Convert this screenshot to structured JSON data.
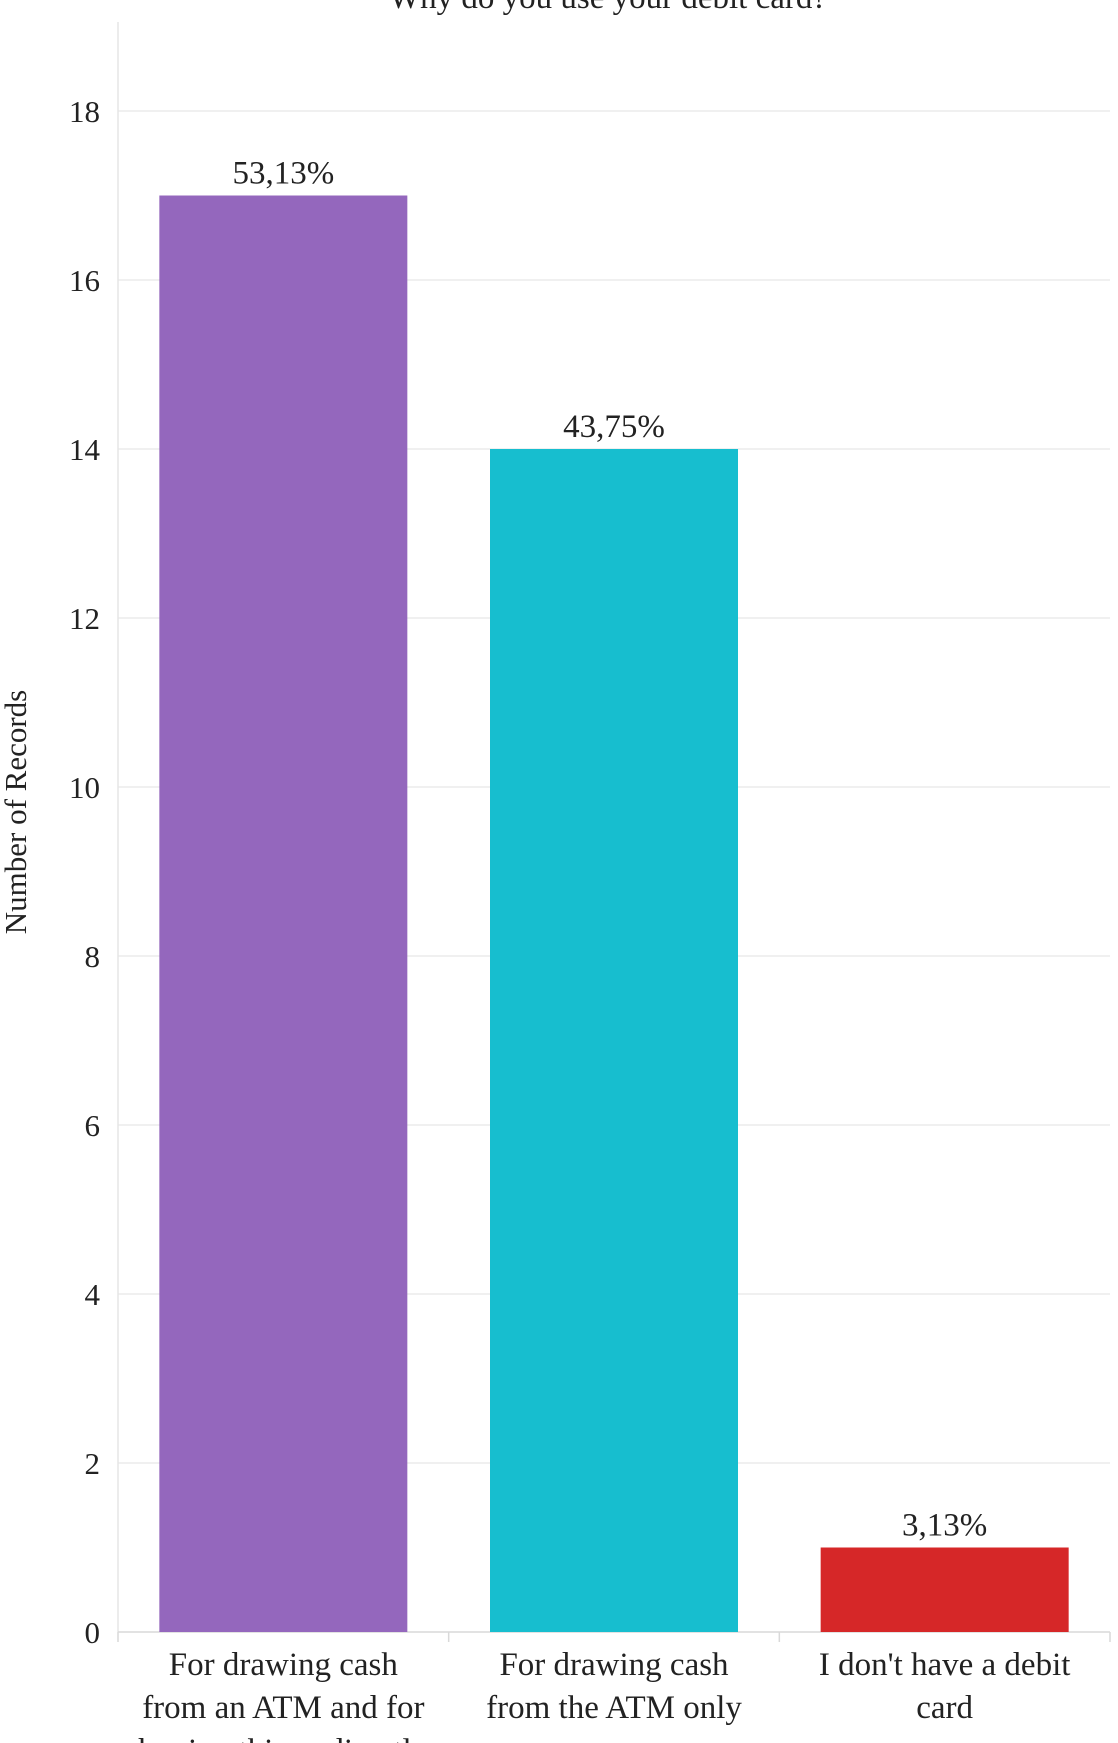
{
  "chart_data": {
    "type": "bar",
    "title": "Why do you use your debit card?",
    "ylabel": "Number of Records",
    "xlabel": "",
    "ylim": [
      0,
      19
    ],
    "yticks": [
      0,
      2,
      4,
      6,
      8,
      10,
      12,
      14,
      16,
      18
    ],
    "grid": true,
    "categories": [
      [
        "For drawing cash",
        "from an ATM and for",
        "buying things directly"
      ],
      [
        "For drawing cash",
        "from the ATM only"
      ],
      [
        "I don't have a debit",
        "card"
      ]
    ],
    "values": [
      17,
      14,
      1
    ],
    "data_labels": [
      "53,13%",
      "43,75%",
      "3,13%"
    ],
    "colors": [
      "#9467bd",
      "#17becf",
      "#d62728"
    ]
  }
}
